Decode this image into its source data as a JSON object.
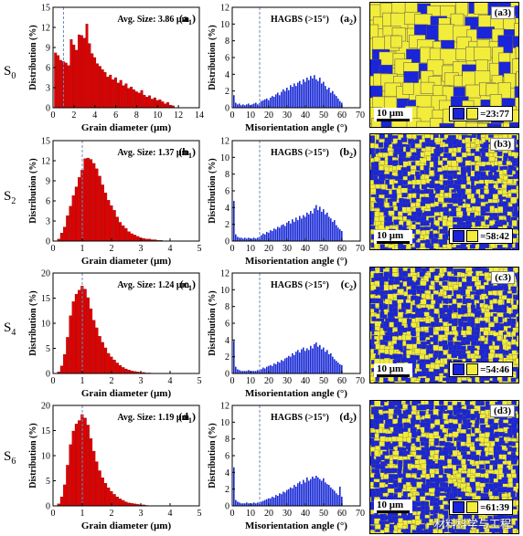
{
  "colors": {
    "red_bar": "#e00000",
    "blue_bar": "#1a2bd6",
    "ebsd_blue": "#1a24d8",
    "ebsd_yellow": "#f2ec3a",
    "dash_line": "#6c89b8"
  },
  "row_labels": [
    {
      "main": "S",
      "sub": "0"
    },
    {
      "main": "S",
      "sub": "2"
    },
    {
      "main": "S",
      "sub": "4"
    },
    {
      "main": "S",
      "sub": "6"
    }
  ],
  "maps": [
    {
      "label": "(a3)",
      "scale": "10 μm",
      "ratio": "=23:77",
      "blue_fraction": 0.23
    },
    {
      "label": "(b3)",
      "scale": "10 μm",
      "ratio": "=58:42",
      "blue_fraction": 0.58
    },
    {
      "label": "(c3)",
      "scale": "10 μm",
      "ratio": "=54:46",
      "blue_fraction": 0.54
    },
    {
      "label": "(d3)",
      "scale": "10 μm",
      "ratio": "=61:39",
      "blue_fraction": 0.61
    }
  ],
  "watermark": "材料科学与工程",
  "chart_data": [
    {
      "type": "bar",
      "panel": "(a1)",
      "annotation": "Avg. Size: 3.86 μm",
      "xlabel": "Grain diameter (μm)",
      "ylabel": "Distribution (%)",
      "xlim": [
        0,
        14
      ],
      "ylim": [
        0,
        15
      ],
      "xticks": [
        "0",
        "2",
        "4",
        "6",
        "8",
        "10",
        "12",
        "14"
      ],
      "yticks": [
        "0",
        "3",
        "6",
        "9",
        "12",
        "15"
      ],
      "dashed_line_x": 1.0,
      "bar_width": 0.25,
      "x": [
        0.25,
        0.5,
        0.75,
        1.0,
        1.25,
        1.5,
        1.75,
        2.0,
        2.25,
        2.5,
        2.75,
        3.0,
        3.25,
        3.5,
        3.75,
        4.0,
        4.25,
        4.5,
        4.75,
        5.0,
        5.25,
        5.5,
        5.75,
        6.0,
        6.25,
        6.5,
        6.75,
        7.0,
        7.25,
        7.5,
        7.75,
        8.0,
        8.25,
        8.5,
        8.75,
        9.0,
        9.25,
        9.5,
        9.75,
        10.0,
        10.25,
        10.5,
        10.75,
        11.0,
        11.25,
        11.5
      ],
      "values": [
        8.2,
        7.8,
        7.1,
        6.9,
        6.7,
        6.3,
        10.2,
        9.4,
        8.6,
        10.9,
        10.8,
        10.4,
        12.5,
        9.6,
        8.1,
        7.5,
        6.6,
        6.2,
        5.7,
        5.3,
        4.6,
        4.9,
        4.2,
        4.5,
        3.7,
        4.1,
        3.3,
        3.6,
        2.9,
        3.1,
        2.7,
        2.4,
        2.2,
        2.6,
        1.9,
        1.6,
        1.8,
        1.3,
        1.5,
        1.1,
        1.2,
        0.9,
        0.6,
        0.8,
        0.4,
        0.3
      ]
    },
    {
      "type": "bar",
      "panel": "(a2)",
      "annotation": "HAGBS (>15°)",
      "xlabel": "Misorientation angle (°)",
      "ylabel": "Distribution (%)",
      "xlim": [
        0,
        70
      ],
      "ylim": [
        0,
        12
      ],
      "xticks": [
        "0",
        "10",
        "20",
        "30",
        "40",
        "50",
        "60",
        "70"
      ],
      "yticks": [
        "0",
        "2",
        "4",
        "6",
        "8",
        "10",
        "12"
      ],
      "dashed_line_x": 15,
      "x": [
        1,
        2,
        3,
        4,
        5,
        6,
        7,
        8,
        9,
        10,
        11,
        12,
        13,
        14,
        15,
        16,
        17,
        18,
        19,
        20,
        21,
        22,
        23,
        24,
        25,
        26,
        27,
        28,
        29,
        30,
        31,
        32,
        33,
        34,
        35,
        36,
        37,
        38,
        39,
        40,
        41,
        42,
        43,
        44,
        45,
        46,
        47,
        48,
        49,
        50,
        51,
        52,
        53,
        54,
        55,
        56,
        57,
        58,
        59,
        60
      ],
      "values": [
        1.5,
        0.6,
        0.4,
        0.5,
        0.3,
        0.4,
        0.3,
        0.4,
        0.5,
        0.3,
        0.4,
        0.5,
        0.6,
        0.4,
        0.6,
        0.8,
        0.9,
        1.0,
        1.1,
        0.9,
        1.2,
        1.4,
        1.3,
        1.6,
        1.8,
        1.5,
        1.9,
        2.2,
        2.0,
        2.4,
        2.1,
        2.7,
        2.5,
        2.9,
        2.6,
        3.0,
        3.2,
        2.8,
        3.4,
        3.1,
        3.6,
        3.3,
        3.8,
        3.5,
        3.9,
        3.4,
        3.2,
        3.6,
        2.9,
        3.1,
        2.6,
        2.2,
        2.4,
        1.8,
        2.0,
        1.6,
        1.4,
        1.1,
        0.8,
        0.6
      ]
    },
    {
      "type": "bar",
      "panel": "(b1)",
      "annotation": "Avg. Size: 1.37 μm",
      "xlabel": "Grain diameter (μm)",
      "ylabel": "Distribution (%)",
      "xlim": [
        0,
        5
      ],
      "ylim": [
        0,
        15
      ],
      "xticks": [
        "0",
        "1",
        "2",
        "3",
        "4",
        "5"
      ],
      "yticks": [
        "0",
        "3",
        "6",
        "9",
        "12",
        "15"
      ],
      "dashed_line_x": 1.0,
      "bar_width": 0.1,
      "x": [
        0.2,
        0.3,
        0.4,
        0.5,
        0.6,
        0.7,
        0.8,
        0.9,
        1.0,
        1.1,
        1.2,
        1.3,
        1.4,
        1.5,
        1.6,
        1.7,
        1.8,
        1.9,
        2.0,
        2.1,
        2.2,
        2.3,
        2.4,
        2.5,
        2.6,
        2.7,
        2.8,
        2.9,
        3.0,
        3.1,
        3.2,
        3.3,
        3.4,
        3.5,
        3.6,
        3.7
      ],
      "values": [
        0.3,
        1.2,
        2.1,
        3.8,
        5.2,
        6.8,
        8.1,
        9.5,
        10.6,
        12.3,
        12.4,
        12.2,
        11.6,
        10.8,
        9.7,
        8.4,
        7.2,
        6.1,
        5.3,
        4.6,
        3.6,
        2.8,
        2.3,
        1.9,
        1.4,
        1.1,
        0.9,
        0.7,
        0.5,
        0.4,
        0.3,
        0.3,
        0.2,
        0.2,
        0.1,
        0.1
      ]
    },
    {
      "type": "bar",
      "panel": "(b2)",
      "annotation": "HAGBS (>15°)",
      "xlabel": "Misorientation angle (°)",
      "ylabel": "Distribution (%)",
      "xlim": [
        0,
        70
      ],
      "ylim": [
        0,
        12
      ],
      "xticks": [
        "0",
        "10",
        "20",
        "30",
        "40",
        "50",
        "60",
        "70"
      ],
      "yticks": [
        "0",
        "2",
        "4",
        "6",
        "8",
        "10",
        "12"
      ],
      "dashed_line_x": 15,
      "x": [
        1,
        2,
        3,
        4,
        5,
        6,
        7,
        8,
        9,
        10,
        11,
        12,
        13,
        14,
        15,
        16,
        17,
        18,
        19,
        20,
        21,
        22,
        23,
        24,
        25,
        26,
        27,
        28,
        29,
        30,
        31,
        32,
        33,
        34,
        35,
        36,
        37,
        38,
        39,
        40,
        41,
        42,
        43,
        44,
        45,
        46,
        47,
        48,
        49,
        50,
        51,
        52,
        53,
        54,
        55,
        56,
        57,
        58,
        59,
        60
      ],
      "values": [
        4.8,
        0.8,
        0.5,
        0.4,
        0.4,
        0.3,
        0.4,
        0.3,
        0.4,
        0.3,
        0.3,
        0.4,
        0.3,
        0.4,
        0.5,
        0.7,
        0.9,
        0.8,
        1.1,
        1.0,
        1.3,
        1.2,
        1.5,
        1.4,
        1.7,
        1.6,
        1.9,
        2.0,
        1.8,
        2.2,
        2.4,
        2.1,
        2.6,
        2.3,
        2.8,
        2.5,
        3.0,
        2.7,
        3.1,
        2.9,
        3.4,
        3.2,
        3.6,
        3.3,
        3.9,
        4.3,
        3.7,
        4.1,
        3.5,
        3.8,
        3.2,
        3.4,
        2.9,
        2.7,
        2.3,
        2.5,
        1.9,
        1.6,
        1.4,
        1.2
      ]
    },
    {
      "type": "bar",
      "panel": "(c1)",
      "annotation": "Avg. Size: 1.24 μm",
      "xlabel": "Grain diameter (μm)",
      "ylabel": "Distribution (%)",
      "xlim": [
        0,
        5
      ],
      "ylim": [
        0,
        20
      ],
      "xticks": [
        "0",
        "1",
        "2",
        "3",
        "4",
        "5"
      ],
      "yticks": [
        "0",
        "5",
        "10",
        "15",
        "20"
      ],
      "dashed_line_x": 1.0,
      "bar_width": 0.1,
      "x": [
        0.2,
        0.3,
        0.4,
        0.5,
        0.6,
        0.7,
        0.8,
        0.9,
        1.0,
        1.1,
        1.2,
        1.3,
        1.4,
        1.5,
        1.6,
        1.7,
        1.8,
        1.9,
        2.0,
        2.1,
        2.2,
        2.3,
        2.4,
        2.5,
        2.6,
        2.7,
        2.8,
        2.9,
        3.0,
        3.1,
        3.2,
        3.3
      ],
      "values": [
        0.3,
        1.5,
        3.8,
        7.2,
        11.5,
        14.3,
        15.8,
        16.6,
        17.4,
        16.8,
        15.1,
        12.9,
        10.6,
        9.1,
        7.4,
        6.2,
        5.1,
        4.0,
        3.3,
        2.7,
        2.1,
        1.6,
        1.2,
        0.9,
        0.7,
        0.5,
        0.4,
        0.3,
        0.2,
        0.2,
        0.1,
        0.1
      ]
    },
    {
      "type": "bar",
      "panel": "(c2)",
      "annotation": "HAGBS (>15°)",
      "xlabel": "Misorientation angle (°)",
      "ylabel": "Distribution (%)",
      "xlim": [
        0,
        70
      ],
      "ylim": [
        0,
        12
      ],
      "xticks": [
        "0",
        "10",
        "20",
        "30",
        "40",
        "50",
        "60",
        "70"
      ],
      "yticks": [
        "0",
        "2",
        "4",
        "6",
        "8",
        "10",
        "12"
      ],
      "dashed_line_x": 15,
      "x": [
        1,
        2,
        3,
        4,
        5,
        6,
        7,
        8,
        9,
        10,
        11,
        12,
        13,
        14,
        15,
        16,
        17,
        18,
        19,
        20,
        21,
        22,
        23,
        24,
        25,
        26,
        27,
        28,
        29,
        30,
        31,
        32,
        33,
        34,
        35,
        36,
        37,
        38,
        39,
        40,
        41,
        42,
        43,
        44,
        45,
        46,
        47,
        48,
        49,
        50,
        51,
        52,
        53,
        54,
        55,
        56,
        57,
        58,
        59,
        60
      ],
      "values": [
        3.9,
        0.8,
        0.5,
        0.4,
        0.3,
        0.3,
        0.3,
        0.3,
        0.4,
        0.3,
        0.3,
        0.3,
        0.3,
        0.4,
        0.4,
        0.5,
        0.7,
        0.6,
        0.8,
        0.9,
        1.0,
        0.9,
        1.2,
        1.1,
        1.4,
        1.3,
        1.6,
        1.5,
        1.8,
        1.9,
        2.1,
        2.0,
        2.4,
        2.2,
        2.6,
        2.8,
        2.5,
        2.9,
        3.1,
        2.7,
        3.0,
        2.8,
        3.3,
        3.0,
        3.5,
        3.7,
        3.2,
        3.4,
        2.9,
        3.1,
        2.6,
        2.8,
        2.3,
        2.4,
        2.0,
        1.7,
        1.5,
        1.3,
        1.1,
        1.0
      ]
    },
    {
      "type": "bar",
      "panel": "(d1)",
      "annotation": "Avg. Size: 1.19 μm",
      "xlabel": "Grain diameter (μm)",
      "ylabel": "Distribution (%)",
      "xlim": [
        0,
        5
      ],
      "ylim": [
        0,
        20
      ],
      "xticks": [
        "0",
        "1",
        "2",
        "3",
        "4",
        "5"
      ],
      "yticks": [
        "0",
        "5",
        "10",
        "15",
        "20"
      ],
      "dashed_line_x": 1.0,
      "bar_width": 0.1,
      "x": [
        0.2,
        0.3,
        0.4,
        0.5,
        0.6,
        0.7,
        0.8,
        0.9,
        1.0,
        1.1,
        1.2,
        1.3,
        1.4,
        1.5,
        1.6,
        1.7,
        1.8,
        1.9,
        2.0,
        2.1,
        2.2,
        2.3,
        2.4,
        2.5,
        2.6,
        2.7,
        2.8,
        2.9,
        3.0,
        3.1,
        3.2
      ],
      "values": [
        0.4,
        1.8,
        4.2,
        8.1,
        12.2,
        14.9,
        16.3,
        17.0,
        18.2,
        17.5,
        16.1,
        13.4,
        10.9,
        8.8,
        7.0,
        5.6,
        4.5,
        3.6,
        2.9,
        2.3,
        1.8,
        1.4,
        1.1,
        0.8,
        0.6,
        0.5,
        0.4,
        0.3,
        0.2,
        0.2,
        0.1
      ]
    },
    {
      "type": "bar",
      "panel": "(d2)",
      "annotation": "HAGBS (>15°)",
      "xlabel": "Misorientation angle (°)",
      "ylabel": "Distribution (%)",
      "xlim": [
        0,
        70
      ],
      "ylim": [
        0,
        12
      ],
      "xticks": [
        "0",
        "10",
        "20",
        "30",
        "40",
        "50",
        "60",
        "70"
      ],
      "yticks": [
        "0",
        "2",
        "4",
        "6",
        "8",
        "10",
        "12"
      ],
      "dashed_line_x": 15,
      "x": [
        1,
        2,
        3,
        4,
        5,
        6,
        7,
        8,
        9,
        10,
        11,
        12,
        13,
        14,
        15,
        16,
        17,
        18,
        19,
        20,
        21,
        22,
        23,
        24,
        25,
        26,
        27,
        28,
        29,
        30,
        31,
        32,
        33,
        34,
        35,
        36,
        37,
        38,
        39,
        40,
        41,
        42,
        43,
        44,
        45,
        46,
        47,
        48,
        49,
        50,
        51,
        52,
        53,
        54,
        55,
        56,
        57,
        58,
        59,
        60
      ],
      "values": [
        4.6,
        0.7,
        0.5,
        0.4,
        0.3,
        0.3,
        0.3,
        0.4,
        0.3,
        0.3,
        0.3,
        0.4,
        0.3,
        0.4,
        0.4,
        0.5,
        0.6,
        0.7,
        0.8,
        0.9,
        0.9,
        1.1,
        1.0,
        1.3,
        1.2,
        1.5,
        1.4,
        1.7,
        1.6,
        1.9,
        2.0,
        2.2,
        2.1,
        2.5,
        2.3,
        2.7,
        2.9,
        2.6,
        3.1,
        2.8,
        3.4,
        3.0,
        3.2,
        3.5,
        3.3,
        3.6,
        3.4,
        3.2,
        3.0,
        3.3,
        2.8,
        2.6,
        2.5,
        2.2,
        2.0,
        1.8,
        1.5,
        1.3,
        2.3,
        1.1
      ]
    }
  ]
}
